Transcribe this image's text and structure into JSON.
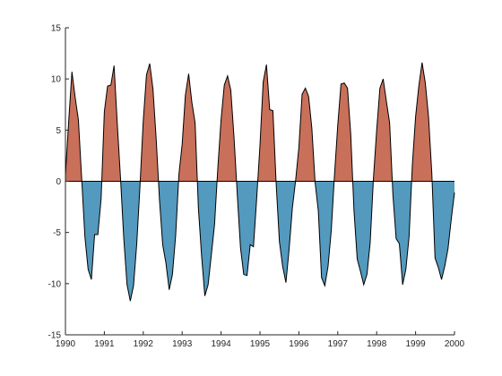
{
  "chart_data": {
    "type": "area",
    "title": "",
    "xlabel": "",
    "ylabel": "",
    "xlim": [
      1990,
      2000
    ],
    "ylim": [
      -15,
      15
    ],
    "grid": false,
    "legend": "none",
    "x_ticks": [
      1990,
      1991,
      1992,
      1993,
      1994,
      1995,
      1996,
      1997,
      1998,
      1999,
      2000
    ],
    "y_ticks": [
      -15,
      -10,
      -5,
      0,
      5,
      10,
      15
    ],
    "x_tick_labels": [
      "1990",
      "1991",
      "1992",
      "1993",
      "1994",
      "1995",
      "1996",
      "1997",
      "1998",
      "1999",
      "2000"
    ],
    "y_tick_labels": [
      "-15",
      "-10",
      "-5",
      "0",
      "5",
      "10",
      "15"
    ],
    "colors": {
      "positive": "#C8705A",
      "negative": "#5499BE",
      "line": "#000000",
      "axis": "#262626"
    },
    "series": [
      {
        "x": [
          1990.0,
          1990.083,
          1990.167,
          1990.25,
          1990.333,
          1990.417,
          1990.5,
          1990.583,
          1990.667,
          1990.75,
          1990.833,
          1990.917,
          1991.0,
          1991.083,
          1991.167,
          1991.25,
          1991.333,
          1991.417,
          1991.5,
          1991.583,
          1991.667,
          1991.75,
          1991.833,
          1991.917,
          1992.0,
          1992.083,
          1992.167,
          1992.25,
          1992.333,
          1992.417,
          1992.5,
          1992.583,
          1992.667,
          1992.75,
          1992.833,
          1992.917,
          1993.0,
          1993.083,
          1993.167,
          1993.25,
          1993.333,
          1993.417,
          1993.5,
          1993.583,
          1993.667,
          1993.75,
          1993.833,
          1993.917,
          1994.0,
          1994.083,
          1994.167,
          1994.25,
          1994.333,
          1994.417,
          1994.5,
          1994.583,
          1994.667,
          1994.75,
          1994.833,
          1994.917,
          1995.0,
          1995.083,
          1995.167,
          1995.25,
          1995.333,
          1995.417,
          1995.5,
          1995.583,
          1995.667,
          1995.75,
          1995.833,
          1995.917,
          1996.0,
          1996.083,
          1996.167,
          1996.25,
          1996.333,
          1996.417,
          1996.5,
          1996.583,
          1996.667,
          1996.75,
          1996.833,
          1996.917,
          1997.0,
          1997.083,
          1997.167,
          1997.25,
          1997.333,
          1997.417,
          1997.5,
          1997.583,
          1997.667,
          1997.75,
          1997.833,
          1997.917,
          1998.0,
          1998.083,
          1998.167,
          1998.25,
          1998.333,
          1998.417,
          1998.5,
          1998.583,
          1998.667,
          1998.75,
          1998.833,
          1998.917,
          1999.0,
          1999.083,
          1999.167,
          1999.25,
          1999.333,
          1999.417,
          1999.5,
          1999.583,
          1999.667,
          1999.75,
          1999.833,
          1999.917,
          2000.0
        ],
        "y": [
          0.6,
          5.8,
          10.7,
          8.2,
          6.0,
          0.3,
          -5.4,
          -8.6,
          -9.6,
          -5.2,
          -5.2,
          -1.7,
          6.8,
          9.3,
          9.4,
          11.3,
          5.6,
          0.2,
          -5.6,
          -10.1,
          -11.7,
          -10.2,
          -6.1,
          -0.4,
          5.9,
          10.4,
          11.5,
          9.0,
          4.1,
          -1.8,
          -6.2,
          -8.0,
          -10.6,
          -9.1,
          -5.3,
          0.7,
          3.6,
          8.4,
          10.5,
          7.7,
          5.7,
          -2.6,
          -7.3,
          -11.2,
          -10.1,
          -7.2,
          -4.2,
          1.3,
          6.0,
          9.4,
          10.3,
          8.9,
          4.3,
          -1.3,
          -6.5,
          -9.1,
          -9.2,
          -6.2,
          -6.4,
          -1.6,
          3.5,
          9.7,
          11.4,
          7.0,
          6.9,
          -0.3,
          -5.9,
          -8.3,
          -9.9,
          -6.6,
          -2.6,
          0.1,
          3.3,
          8.5,
          9.1,
          8.3,
          5.2,
          -0.1,
          -2.9,
          -9.4,
          -10.2,
          -8.3,
          -4.8,
          0.7,
          5.5,
          9.5,
          9.6,
          9.1,
          4.6,
          -2.9,
          -7.6,
          -8.8,
          -10.1,
          -9.1,
          -6.0,
          0.3,
          5.0,
          9.1,
          10.0,
          7.8,
          5.7,
          -1.3,
          -5.6,
          -6.1,
          -10.1,
          -8.6,
          -5.4,
          1.6,
          6.3,
          9.3,
          11.6,
          9.6,
          6.3,
          0.8,
          -7.5,
          -8.4,
          -9.6,
          -8.3,
          -6.6,
          -3.7,
          -1.1
        ]
      }
    ]
  }
}
